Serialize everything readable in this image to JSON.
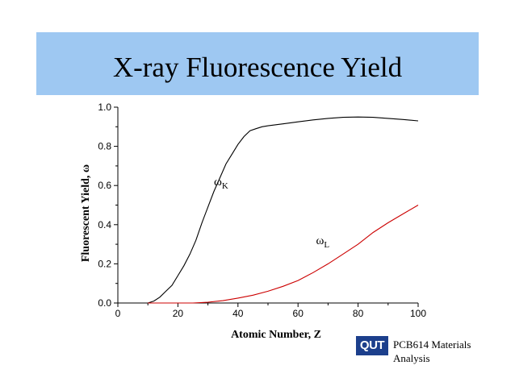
{
  "slide": {
    "title": "X-ray Fluorescence Yield",
    "logo_text": "QUT",
    "footer_line1": "PCB614 Materials",
    "footer_line2": "Analysis",
    "title_bar_color": "#9ec8f2",
    "logo_color": "#1c3f8c"
  },
  "chart_data": {
    "type": "line",
    "title": "",
    "xlabel": "Atomic Number, Z",
    "ylabel": "Fluorescent Yield, ω",
    "xlim": [
      0,
      100
    ],
    "ylim": [
      0.0,
      1.0
    ],
    "xticks": [
      0,
      20,
      40,
      60,
      80,
      100
    ],
    "yticks": [
      "0.0",
      "0.2",
      "0.4",
      "0.6",
      "0.8",
      "1.0"
    ],
    "grid": false,
    "series": [
      {
        "name": "ωK",
        "label_main": "ω",
        "label_sub": "K",
        "color": "#000000",
        "x": [
          10,
          12,
          14,
          16,
          18,
          20,
          22,
          24,
          26,
          28,
          30,
          32,
          34,
          36,
          38,
          40,
          42,
          44,
          46,
          48,
          50,
          55,
          60,
          65,
          70,
          75,
          80,
          85,
          90,
          95,
          100
        ],
        "y": [
          0.0,
          0.01,
          0.03,
          0.06,
          0.09,
          0.14,
          0.19,
          0.25,
          0.32,
          0.41,
          0.49,
          0.57,
          0.64,
          0.71,
          0.76,
          0.81,
          0.85,
          0.88,
          0.89,
          0.9,
          0.905,
          0.915,
          0.925,
          0.935,
          0.943,
          0.948,
          0.95,
          0.948,
          0.943,
          0.937,
          0.93
        ]
      },
      {
        "name": "ωL",
        "label_main": "ω",
        "label_sub": "L",
        "color": "#cc0000",
        "x": [
          10,
          20,
          25,
          30,
          35,
          40,
          45,
          50,
          55,
          60,
          65,
          70,
          75,
          80,
          85,
          90,
          95,
          100
        ],
        "y": [
          0.0,
          0.0,
          0.0,
          0.004,
          0.012,
          0.025,
          0.04,
          0.06,
          0.085,
          0.115,
          0.155,
          0.2,
          0.25,
          0.3,
          0.36,
          0.41,
          0.455,
          0.5
        ]
      }
    ]
  }
}
